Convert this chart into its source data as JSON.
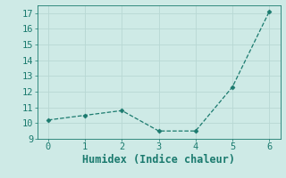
{
  "x": [
    0,
    1,
    2,
    3,
    4,
    5,
    6
  ],
  "y": [
    10.2,
    10.5,
    10.8,
    9.5,
    9.5,
    12.3,
    17.1
  ],
  "xlabel": "Humidex (Indice chaleur)",
  "xlim": [
    -0.3,
    6.3
  ],
  "ylim": [
    9,
    17.5
  ],
  "yticks": [
    9,
    10,
    11,
    12,
    13,
    14,
    15,
    16,
    17
  ],
  "xticks": [
    0,
    1,
    2,
    3,
    4,
    5,
    6
  ],
  "line_color": "#1a7a6e",
  "marker": "D",
  "marker_size": 2.5,
  "background_color": "#ceeae6",
  "grid_color": "#b8d8d4",
  "tick_label_fontsize": 7.5,
  "xlabel_fontsize": 8.5
}
